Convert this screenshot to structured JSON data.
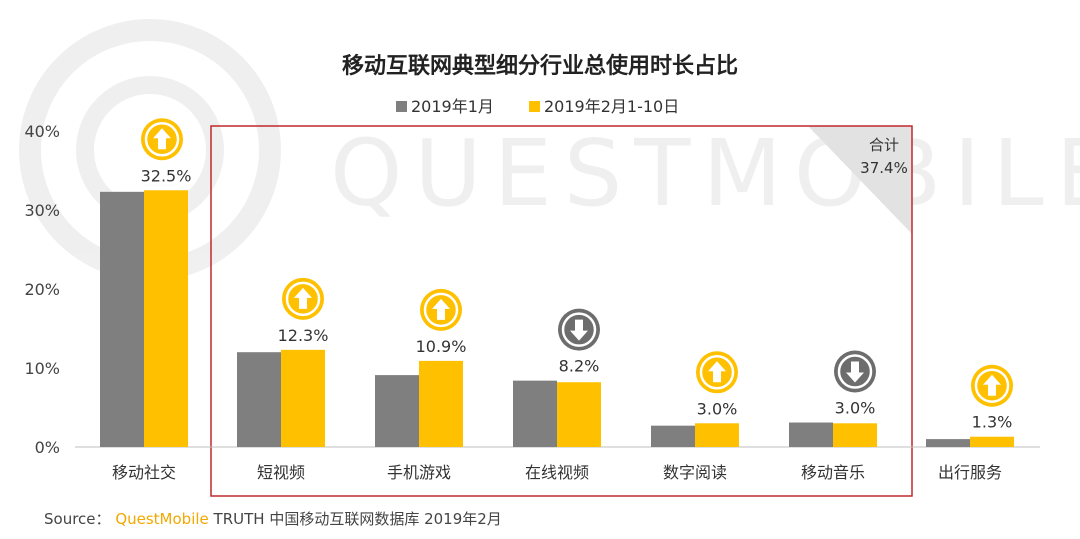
{
  "chart_data": {
    "type": "bar",
    "title": "移动互联网典型细分行业总使用时长占比",
    "categories": [
      "移动社交",
      "短视频",
      "手机游戏",
      "在线视频",
      "数字阅读",
      "移动音乐",
      "出行服务"
    ],
    "series": [
      {
        "name": "2019年1月",
        "color": "#7f7f7f",
        "values": [
          32.3,
          12.0,
          9.1,
          8.4,
          2.7,
          3.1,
          1.0
        ]
      },
      {
        "name": "2019年2月1-10日",
        "color": "#ffc000",
        "values": [
          32.5,
          12.3,
          10.9,
          8.2,
          3.0,
          3.0,
          1.3
        ]
      }
    ],
    "data_labels": [
      "32.5%",
      "12.3%",
      "10.9%",
      "8.2%",
      "3.0%",
      "3.0%",
      "1.3%"
    ],
    "trend": [
      "up",
      "up",
      "up",
      "down",
      "up",
      "down",
      "up"
    ],
    "trend_colors": {
      "up": "#ffc000",
      "down": "#6d6d6d"
    },
    "yticks": [
      "0%",
      "10%",
      "20%",
      "30%",
      "40%"
    ],
    "ylim": [
      0,
      40
    ],
    "grid": false,
    "legend_position": "top-center",
    "highlight": {
      "categories": [
        "短视频",
        "手机游戏",
        "在线视频",
        "数字阅读",
        "移动音乐"
      ],
      "label": "合计",
      "value": "37.4%",
      "border_color": "#c0282d"
    }
  },
  "watermark": "QUESTMOBILE",
  "source": {
    "label": "Source：",
    "brand": "QuestMobile",
    "text": "TRUTH 中国移动互联网数据库 2019年2月"
  }
}
